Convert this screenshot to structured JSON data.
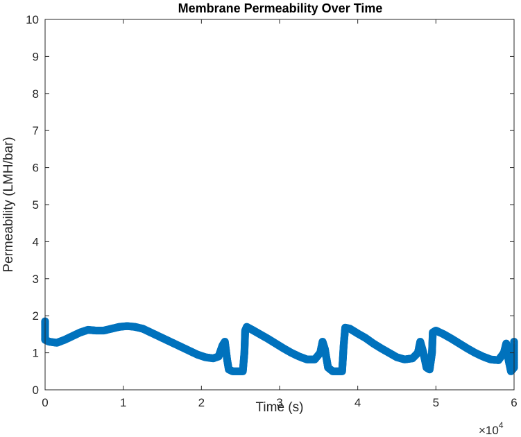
{
  "chart_data": {
    "type": "scatter",
    "title": "Membrane Permeability Over Time",
    "xlabel": "Time (s)",
    "ylabel": "Permeability (LMH/bar)",
    "xlim": [
      0,
      60000
    ],
    "ylim": [
      0,
      10
    ],
    "xticks": [
      0,
      10000,
      20000,
      30000,
      40000,
      50000,
      60000
    ],
    "xtick_labels": [
      "0",
      "1",
      "2",
      "3",
      "4",
      "5",
      "6"
    ],
    "yticks": [
      0,
      1,
      2,
      3,
      4,
      5,
      6,
      7,
      8,
      9,
      10
    ],
    "ytick_labels": [
      "0",
      "1",
      "2",
      "3",
      "4",
      "5",
      "6",
      "7",
      "8",
      "9",
      "10"
    ],
    "x_exponent_base": "×10",
    "x_exponent_power": "4",
    "marker": "open-circle",
    "grid": false,
    "box": true,
    "colors": {
      "series": "#0072BD",
      "axes": "#262626"
    },
    "series": [
      {
        "points": [
          [
            0,
            1.85
          ],
          [
            0,
            1.8
          ],
          [
            0,
            1.7
          ],
          [
            0,
            1.5
          ],
          [
            0,
            1.4
          ],
          [
            0,
            1.35
          ],
          [
            500,
            1.3
          ],
          [
            1500,
            1.27
          ],
          [
            2500,
            1.35
          ],
          [
            3500,
            1.45
          ],
          [
            4500,
            1.55
          ],
          [
            5500,
            1.62
          ],
          [
            6500,
            1.6
          ],
          [
            7500,
            1.6
          ],
          [
            8500,
            1.65
          ],
          [
            9500,
            1.7
          ],
          [
            10500,
            1.72
          ],
          [
            11500,
            1.7
          ],
          [
            12500,
            1.65
          ],
          [
            13500,
            1.55
          ],
          [
            14500,
            1.45
          ],
          [
            15500,
            1.35
          ],
          [
            16500,
            1.25
          ],
          [
            17500,
            1.15
          ],
          [
            18500,
            1.05
          ],
          [
            19500,
            0.95
          ],
          [
            20500,
            0.88
          ],
          [
            21500,
            0.85
          ],
          [
            22200,
            0.9
          ],
          [
            22700,
            1.2
          ],
          [
            23000,
            1.3
          ],
          [
            23300,
            0.8
          ],
          [
            23500,
            0.55
          ],
          [
            24000,
            0.5
          ],
          [
            24800,
            0.5
          ],
          [
            25300,
            0.5
          ],
          [
            25500,
            1.0
          ],
          [
            25600,
            1.6
          ],
          [
            25800,
            1.7
          ],
          [
            26500,
            1.62
          ],
          [
            27500,
            1.5
          ],
          [
            28500,
            1.38
          ],
          [
            29500,
            1.25
          ],
          [
            30500,
            1.12
          ],
          [
            31500,
            1.0
          ],
          [
            32500,
            0.9
          ],
          [
            33500,
            0.82
          ],
          [
            34500,
            0.82
          ],
          [
            35200,
            1.0
          ],
          [
            35500,
            1.3
          ],
          [
            35800,
            1.1
          ],
          [
            36200,
            0.6
          ],
          [
            36800,
            0.5
          ],
          [
            37500,
            0.5
          ],
          [
            38000,
            0.5
          ],
          [
            38200,
            1.2
          ],
          [
            38400,
            1.68
          ],
          [
            39000,
            1.65
          ],
          [
            40000,
            1.52
          ],
          [
            41000,
            1.4
          ],
          [
            42000,
            1.25
          ],
          [
            43000,
            1.12
          ],
          [
            44000,
            1.0
          ],
          [
            45000,
            0.88
          ],
          [
            46000,
            0.82
          ],
          [
            47000,
            0.85
          ],
          [
            47700,
            1.0
          ],
          [
            48000,
            1.3
          ],
          [
            48400,
            1.0
          ],
          [
            48800,
            0.6
          ],
          [
            49200,
            0.55
          ],
          [
            49500,
            1.0
          ],
          [
            49600,
            1.55
          ],
          [
            50000,
            1.6
          ],
          [
            51000,
            1.5
          ],
          [
            52000,
            1.38
          ],
          [
            53000,
            1.25
          ],
          [
            54000,
            1.12
          ],
          [
            55000,
            1.0
          ],
          [
            56000,
            0.9
          ],
          [
            57000,
            0.82
          ],
          [
            58000,
            0.8
          ],
          [
            58700,
            1.0
          ],
          [
            59000,
            1.25
          ],
          [
            59300,
            0.8
          ],
          [
            59600,
            0.5
          ],
          [
            60000,
            0.6
          ],
          [
            60000,
            1.3
          ]
        ]
      }
    ]
  }
}
